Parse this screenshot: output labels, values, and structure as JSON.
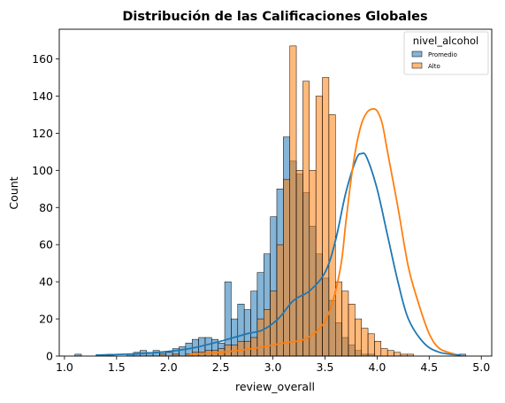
{
  "chart_data": {
    "type": "histogram",
    "title": "Distribución de las Calificaciones Globales",
    "xlabel": "review_overall",
    "ylabel": "Count",
    "xlim": [
      0.95,
      5.1
    ],
    "ylim": [
      0,
      176
    ],
    "xticks": [
      "1.0",
      "1.5",
      "2.0",
      "2.5",
      "3.0",
      "3.5",
      "4.0",
      "4.5",
      "5.0"
    ],
    "yticks": [
      "0",
      "20",
      "40",
      "60",
      "80",
      "100",
      "120",
      "140",
      "160"
    ],
    "grid": false,
    "legend": {
      "title": "nivel_alcohol",
      "placement": "top-right"
    },
    "bin_start": 1.1,
    "bin_width": 0.0625,
    "series": [
      {
        "name": "Promedio",
        "color": "#1f77b4",
        "counts": [
          1,
          0,
          0,
          0,
          0,
          1,
          0,
          0,
          1,
          2,
          3,
          2,
          3,
          2,
          2,
          4,
          5,
          7,
          9,
          10,
          10,
          9,
          7,
          40,
          20,
          28,
          25,
          35,
          45,
          55,
          75,
          90,
          118,
          105,
          98,
          88,
          70,
          55,
          42,
          30,
          18,
          10,
          6,
          3,
          1,
          1,
          0,
          0,
          0,
          0,
          0,
          0,
          0,
          0,
          0,
          0,
          0,
          0,
          0,
          1
        ],
        "kde_x": [
          1.3,
          1.6,
          1.9,
          2.2,
          2.5,
          2.75,
          2.9,
          3.05,
          3.2,
          3.35,
          3.5,
          3.6,
          3.7,
          3.8,
          3.85,
          3.9,
          4.0,
          4.1,
          4.2,
          4.3,
          4.45,
          4.6,
          4.8
        ],
        "kde_y": [
          0.5,
          1,
          2,
          4,
          8,
          12,
          14,
          20,
          30,
          35,
          45,
          62,
          88,
          106,
          109,
          107,
          90,
          65,
          40,
          20,
          7,
          2,
          0.5
        ]
      },
      {
        "name": "Alto",
        "color": "#ff7f0e",
        "counts": [
          0,
          0,
          0,
          0,
          0,
          0,
          0,
          0,
          0,
          0,
          0,
          0,
          0,
          1,
          0,
          1,
          0,
          1,
          2,
          2,
          3,
          3,
          4,
          6,
          6,
          8,
          8,
          10,
          20,
          25,
          35,
          60,
          95,
          167,
          100,
          148,
          100,
          140,
          150,
          130,
          40,
          35,
          28,
          20,
          15,
          12,
          8,
          4,
          3,
          2,
          1,
          1,
          0,
          0,
          0,
          0,
          0,
          0,
          0,
          0
        ],
        "kde_x": [
          2.2,
          2.5,
          2.8,
          3.1,
          3.3,
          3.45,
          3.55,
          3.65,
          3.7,
          3.75,
          3.8,
          3.85,
          3.9,
          3.95,
          4.0,
          4.05,
          4.1,
          4.2,
          4.3,
          4.4,
          4.5,
          4.6,
          4.75
        ],
        "kde_y": [
          1,
          2,
          4,
          7,
          9,
          15,
          25,
          48,
          72,
          95,
          113,
          125,
          131,
          133,
          132,
          125,
          110,
          80,
          48,
          28,
          12,
          4,
          1
        ]
      }
    ]
  }
}
